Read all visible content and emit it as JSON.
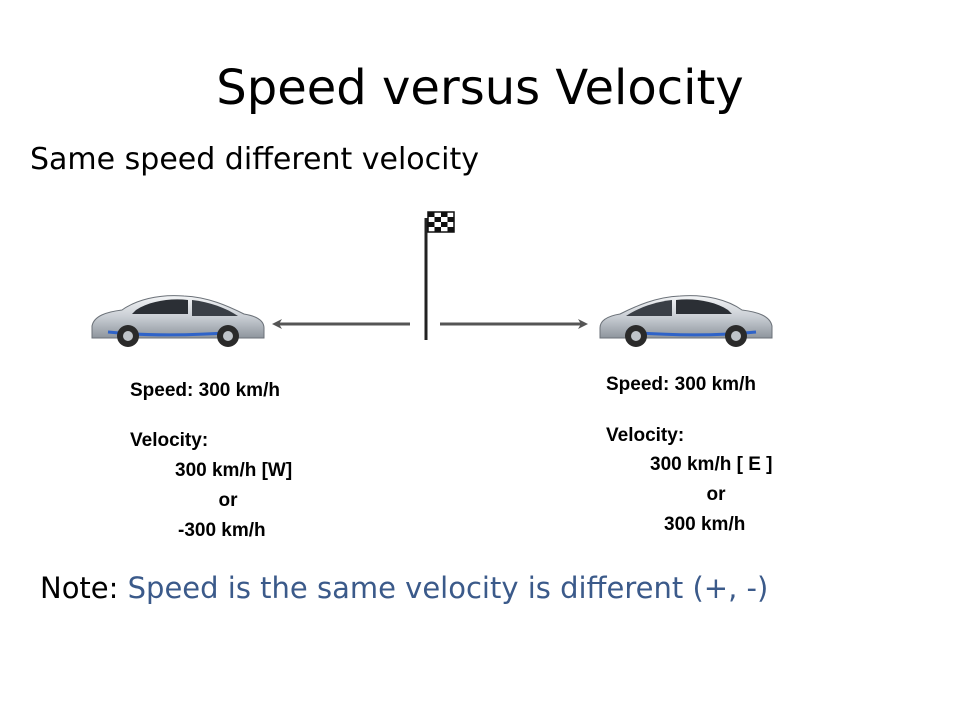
{
  "title": "Speed versus Velocity",
  "subtitle": "Same speed different velocity",
  "left_car": {
    "speed_label": "Speed: 300 km/h",
    "velocity_label": "Velocity:",
    "velocity_value": "300 km/h [W]",
    "or": "or",
    "alt_value": "-300 km/h"
  },
  "right_car": {
    "speed_label": "Speed: 300 km/h",
    "velocity_label": "Velocity:",
    "velocity_value": "300 km/h [ E ]",
    "or": "or",
    "alt_value": "300 km/h"
  },
  "note": {
    "label": "Note:",
    "text": "Speed is the same velocity is different (+, -)"
  },
  "colors": {
    "note_text": "#3b5a8a",
    "car_body": "#d9dde2",
    "car_accent": "#2f63c8"
  }
}
